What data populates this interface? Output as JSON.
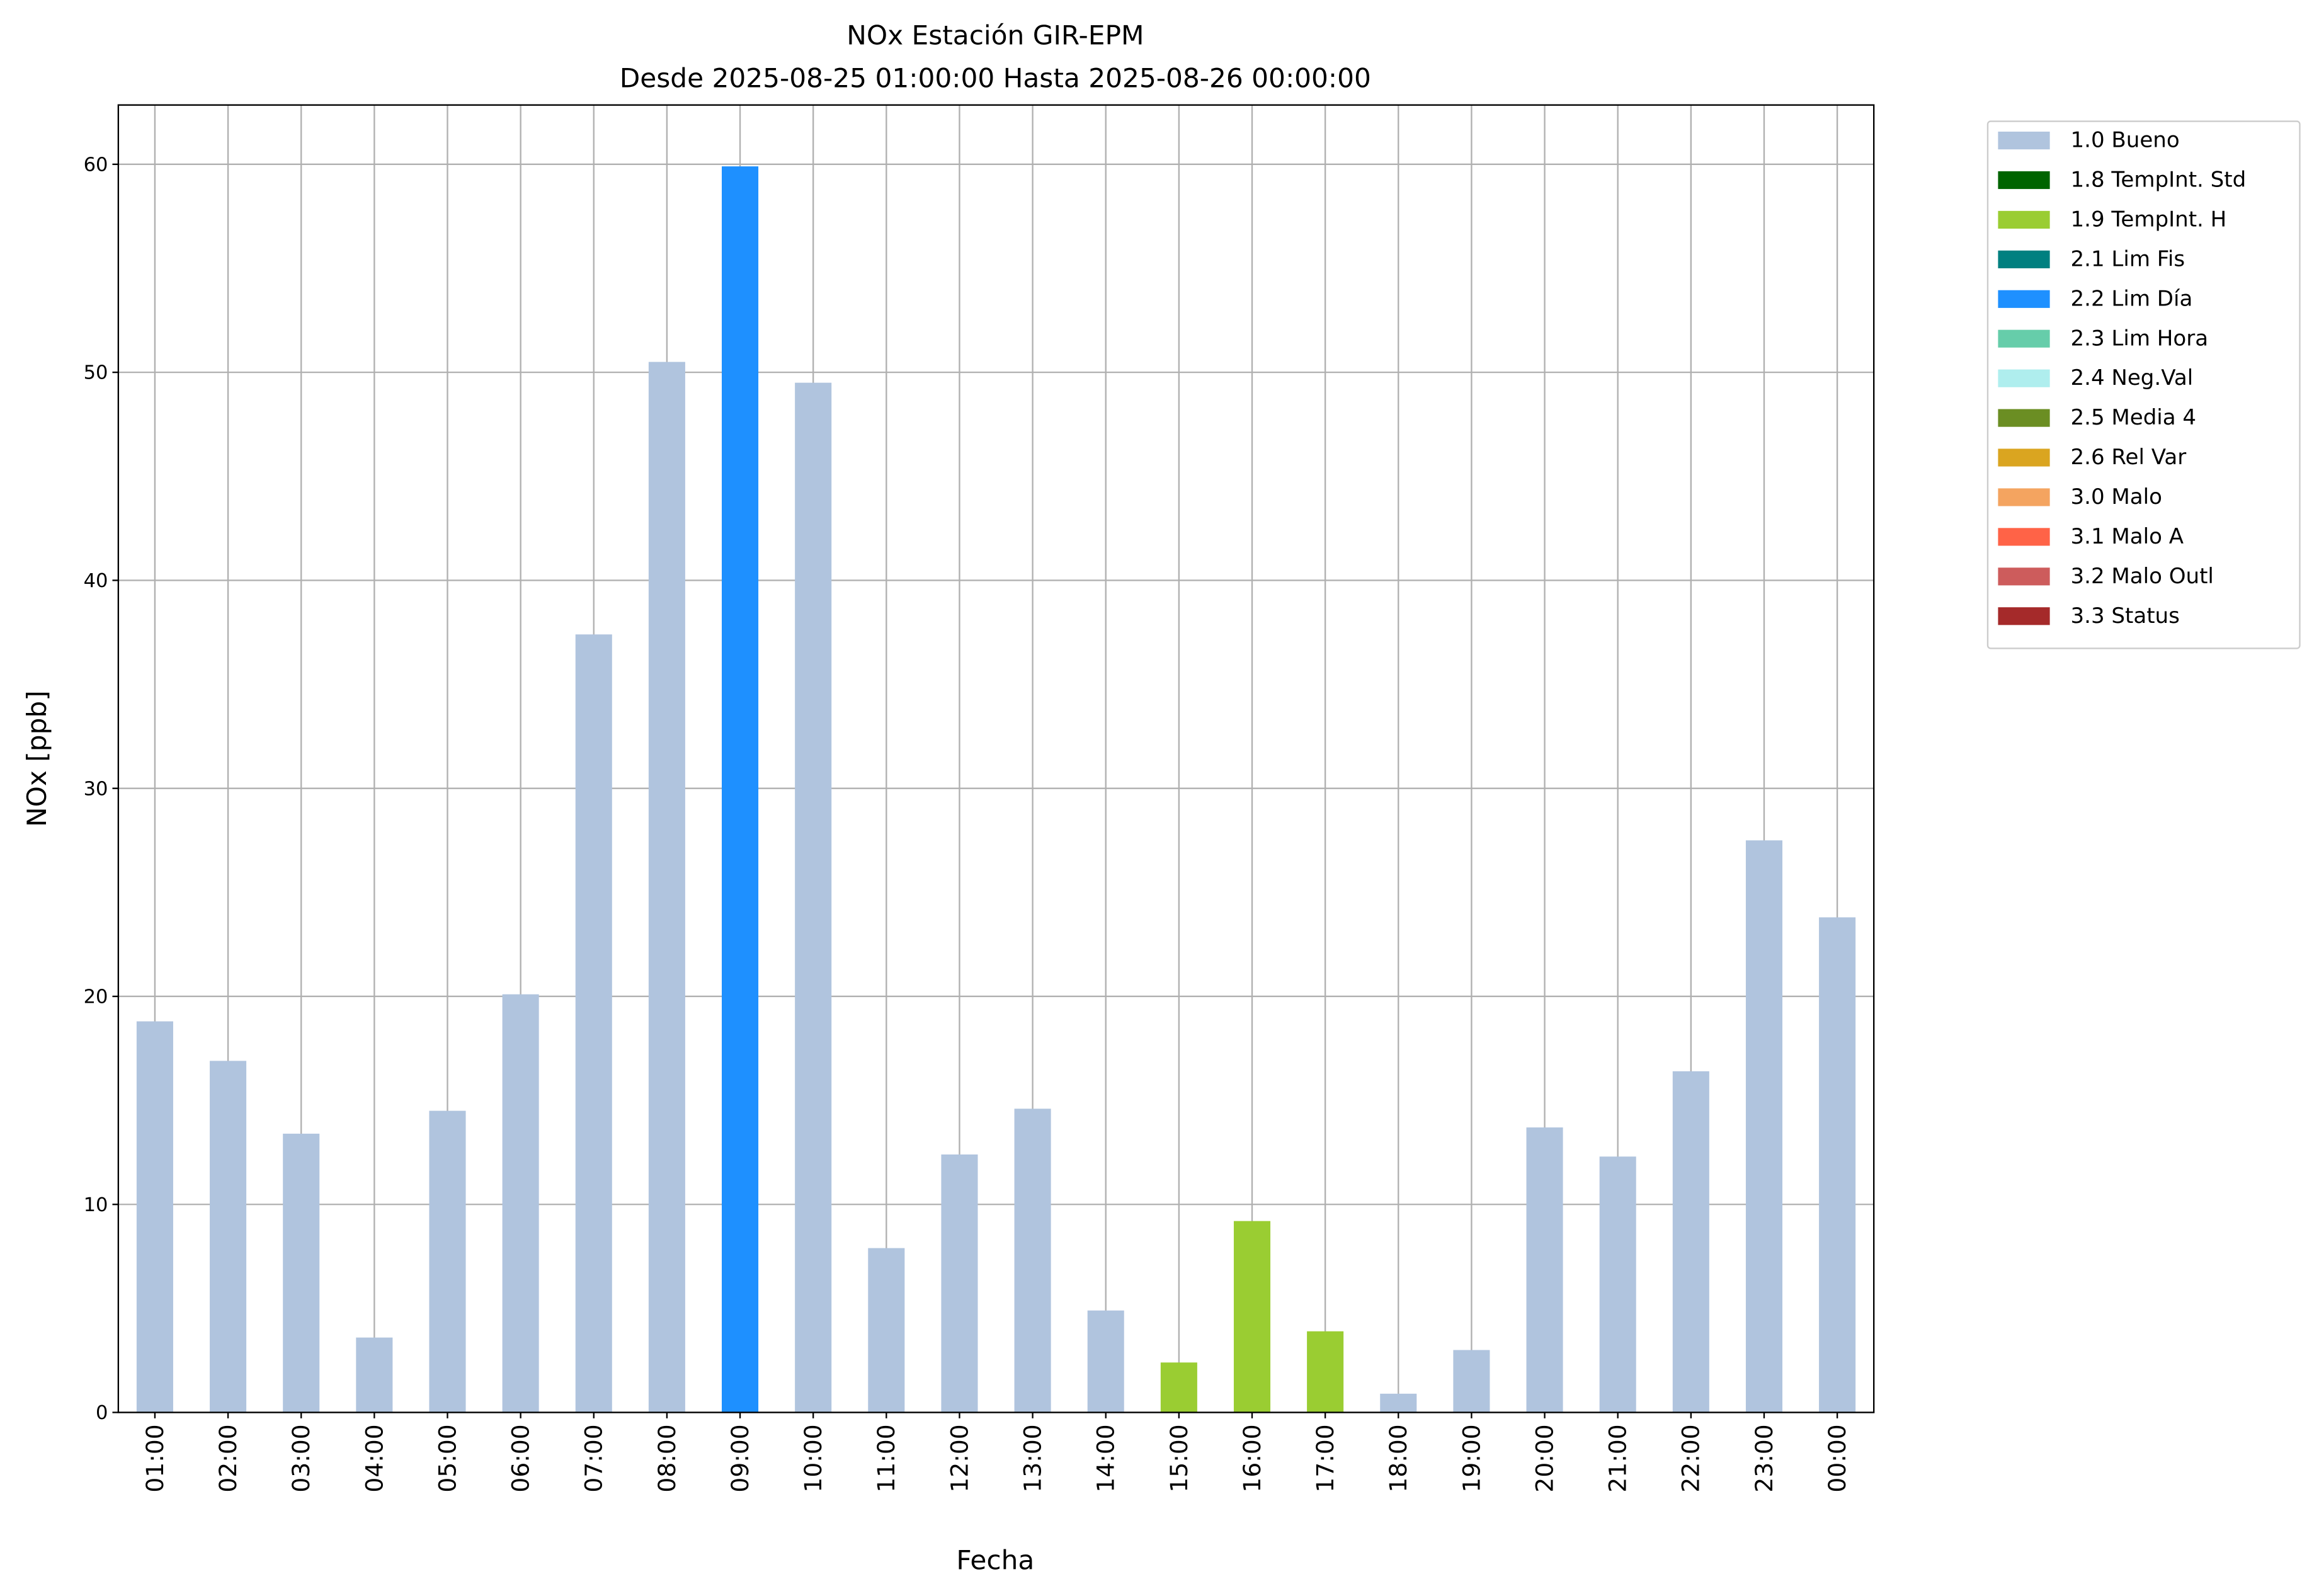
{
  "chart_data": {
    "type": "bar",
    "title": "NOx Estación GIR-EPM",
    "subtitle": "Desde 2025-08-25 01:00:00 Hasta 2025-08-26 00:00:00",
    "x_label": "Fecha",
    "y_label": "NOx [ppb]",
    "categories": [
      "01:00",
      "02:00",
      "03:00",
      "04:00",
      "05:00",
      "06:00",
      "07:00",
      "08:00",
      "09:00",
      "10:00",
      "11:00",
      "12:00",
      "13:00",
      "14:00",
      "15:00",
      "16:00",
      "17:00",
      "18:00",
      "19:00",
      "20:00",
      "21:00",
      "22:00",
      "23:00",
      "00:00"
    ],
    "series": [
      {
        "name": "1.0 Bueno",
        "color": "#b0c4de",
        "values": [
          18.8,
          16.9,
          13.4,
          3.6,
          14.5,
          20.1,
          37.4,
          50.5,
          null,
          49.5,
          7.9,
          12.4,
          14.6,
          4.9,
          null,
          null,
          null,
          0.9,
          3.0,
          13.7,
          12.3,
          16.4,
          27.5,
          23.8
        ]
      },
      {
        "name": "1.8 TempInt. Std",
        "color": "#006400",
        "values": [
          null,
          null,
          null,
          null,
          null,
          null,
          null,
          null,
          null,
          null,
          null,
          null,
          null,
          null,
          null,
          null,
          null,
          null,
          null,
          null,
          null,
          null,
          null,
          null
        ]
      },
      {
        "name": "1.9 TempInt. H",
        "color": "#9acd32",
        "values": [
          null,
          null,
          null,
          null,
          null,
          null,
          null,
          null,
          null,
          null,
          null,
          null,
          null,
          null,
          2.4,
          9.2,
          3.9,
          null,
          null,
          null,
          null,
          null,
          null,
          null
        ]
      },
      {
        "name": "2.1 Lim Fis",
        "color": "#008080",
        "values": [
          null,
          null,
          null,
          null,
          null,
          null,
          null,
          null,
          null,
          null,
          null,
          null,
          null,
          null,
          null,
          null,
          null,
          null,
          null,
          null,
          null,
          null,
          null,
          null
        ]
      },
      {
        "name": "2.2 Lim Día",
        "color": "#1e90ff",
        "values": [
          null,
          null,
          null,
          null,
          null,
          null,
          null,
          null,
          59.9,
          null,
          null,
          null,
          null,
          null,
          null,
          null,
          null,
          null,
          null,
          null,
          null,
          null,
          null,
          null
        ]
      },
      {
        "name": "2.3 Lim Hora",
        "color": "#66cdaa",
        "values": [
          null,
          null,
          null,
          null,
          null,
          null,
          null,
          null,
          null,
          null,
          null,
          null,
          null,
          null,
          null,
          null,
          null,
          null,
          null,
          null,
          null,
          null,
          null,
          null
        ]
      },
      {
        "name": "2.4 Neg.Val",
        "color": "#afeeee",
        "values": [
          null,
          null,
          null,
          null,
          null,
          null,
          null,
          null,
          null,
          null,
          null,
          null,
          null,
          null,
          null,
          null,
          null,
          null,
          null,
          null,
          null,
          null,
          null,
          null
        ]
      },
      {
        "name": "2.5 Media 4",
        "color": "#6b8e23",
        "values": [
          null,
          null,
          null,
          null,
          null,
          null,
          null,
          null,
          null,
          null,
          null,
          null,
          null,
          null,
          null,
          null,
          null,
          null,
          null,
          null,
          null,
          null,
          null,
          null
        ]
      },
      {
        "name": "2.6 Rel Var",
        "color": "#daa520",
        "values": [
          null,
          null,
          null,
          null,
          null,
          null,
          null,
          null,
          null,
          null,
          null,
          null,
          null,
          null,
          null,
          null,
          null,
          null,
          null,
          null,
          null,
          null,
          null,
          null
        ]
      },
      {
        "name": "3.0 Malo",
        "color": "#f4a460",
        "values": [
          null,
          null,
          null,
          null,
          null,
          null,
          null,
          null,
          null,
          null,
          null,
          null,
          null,
          null,
          null,
          null,
          null,
          null,
          null,
          null,
          null,
          null,
          null,
          null
        ]
      },
      {
        "name": "3.1 Malo A",
        "color": "#ff6347",
        "values": [
          null,
          null,
          null,
          null,
          null,
          null,
          null,
          null,
          null,
          null,
          null,
          null,
          null,
          null,
          null,
          null,
          null,
          null,
          null,
          null,
          null,
          null,
          null,
          null
        ]
      },
      {
        "name": "3.2 Malo Outl",
        "color": "#cd5c5c",
        "values": [
          null,
          null,
          null,
          null,
          null,
          null,
          null,
          null,
          null,
          null,
          null,
          null,
          null,
          null,
          null,
          null,
          null,
          null,
          null,
          null,
          null,
          null,
          null,
          null
        ]
      },
      {
        "name": "3.3 Status",
        "color": "#a52a2a",
        "values": [
          null,
          null,
          null,
          null,
          null,
          null,
          null,
          null,
          null,
          null,
          null,
          null,
          null,
          null,
          null,
          null,
          null,
          null,
          null,
          null,
          null,
          null,
          null,
          null
        ]
      }
    ],
    "ylim": [
      0,
      62.85
    ],
    "yticks": [
      0,
      10,
      20,
      30,
      40,
      50,
      60
    ],
    "grid": true,
    "legend": "outside upper right"
  }
}
